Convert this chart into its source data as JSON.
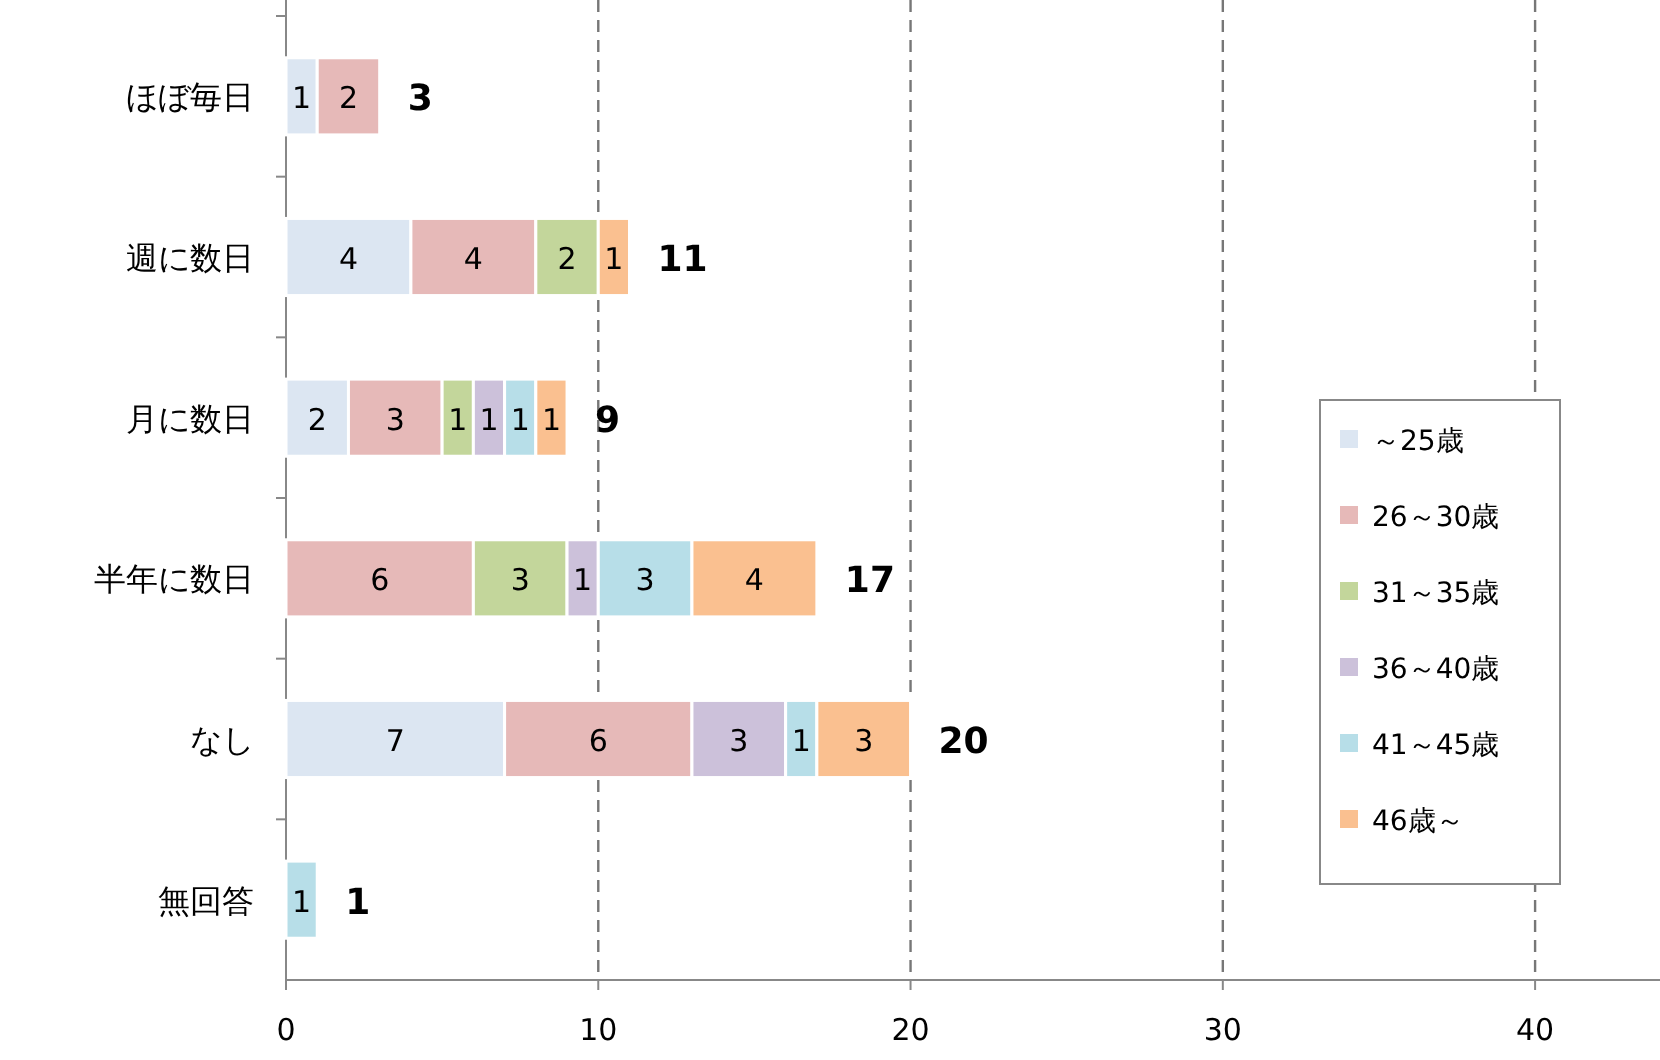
{
  "chart_data": {
    "type": "bar",
    "orientation": "horizontal",
    "stacked": true,
    "categories": [
      "ほぼ毎日",
      "週に数日",
      "月に数日",
      "半年に数日",
      "なし",
      "無回答"
    ],
    "series": [
      {
        "name": "～25歳",
        "color": "#dce6f2",
        "values": [
          1,
          4,
          2,
          null,
          7,
          null
        ]
      },
      {
        "name": "26～30歳",
        "color": "#e6b9b8",
        "values": [
          2,
          4,
          3,
          6,
          6,
          null
        ]
      },
      {
        "name": "31～35歳",
        "color": "#c3d69b",
        "values": [
          null,
          2,
          1,
          3,
          null,
          null
        ]
      },
      {
        "name": "36～40歳",
        "color": "#ccc1da",
        "values": [
          null,
          null,
          1,
          1,
          3,
          null
        ]
      },
      {
        "name": "41～45歳",
        "color": "#b7dee8",
        "values": [
          null,
          null,
          1,
          3,
          1,
          1
        ]
      },
      {
        "name": "46歳～",
        "color": "#fac090",
        "values": [
          null,
          1,
          1,
          4,
          3,
          null
        ]
      }
    ],
    "totals": [
      "3",
      "11",
      "9",
      "17",
      "20",
      "1"
    ],
    "data_labels": true,
    "xlim": [
      0,
      44
    ],
    "xticks": [
      0,
      10,
      20,
      30,
      40
    ],
    "grid": "x",
    "legend": "right"
  }
}
